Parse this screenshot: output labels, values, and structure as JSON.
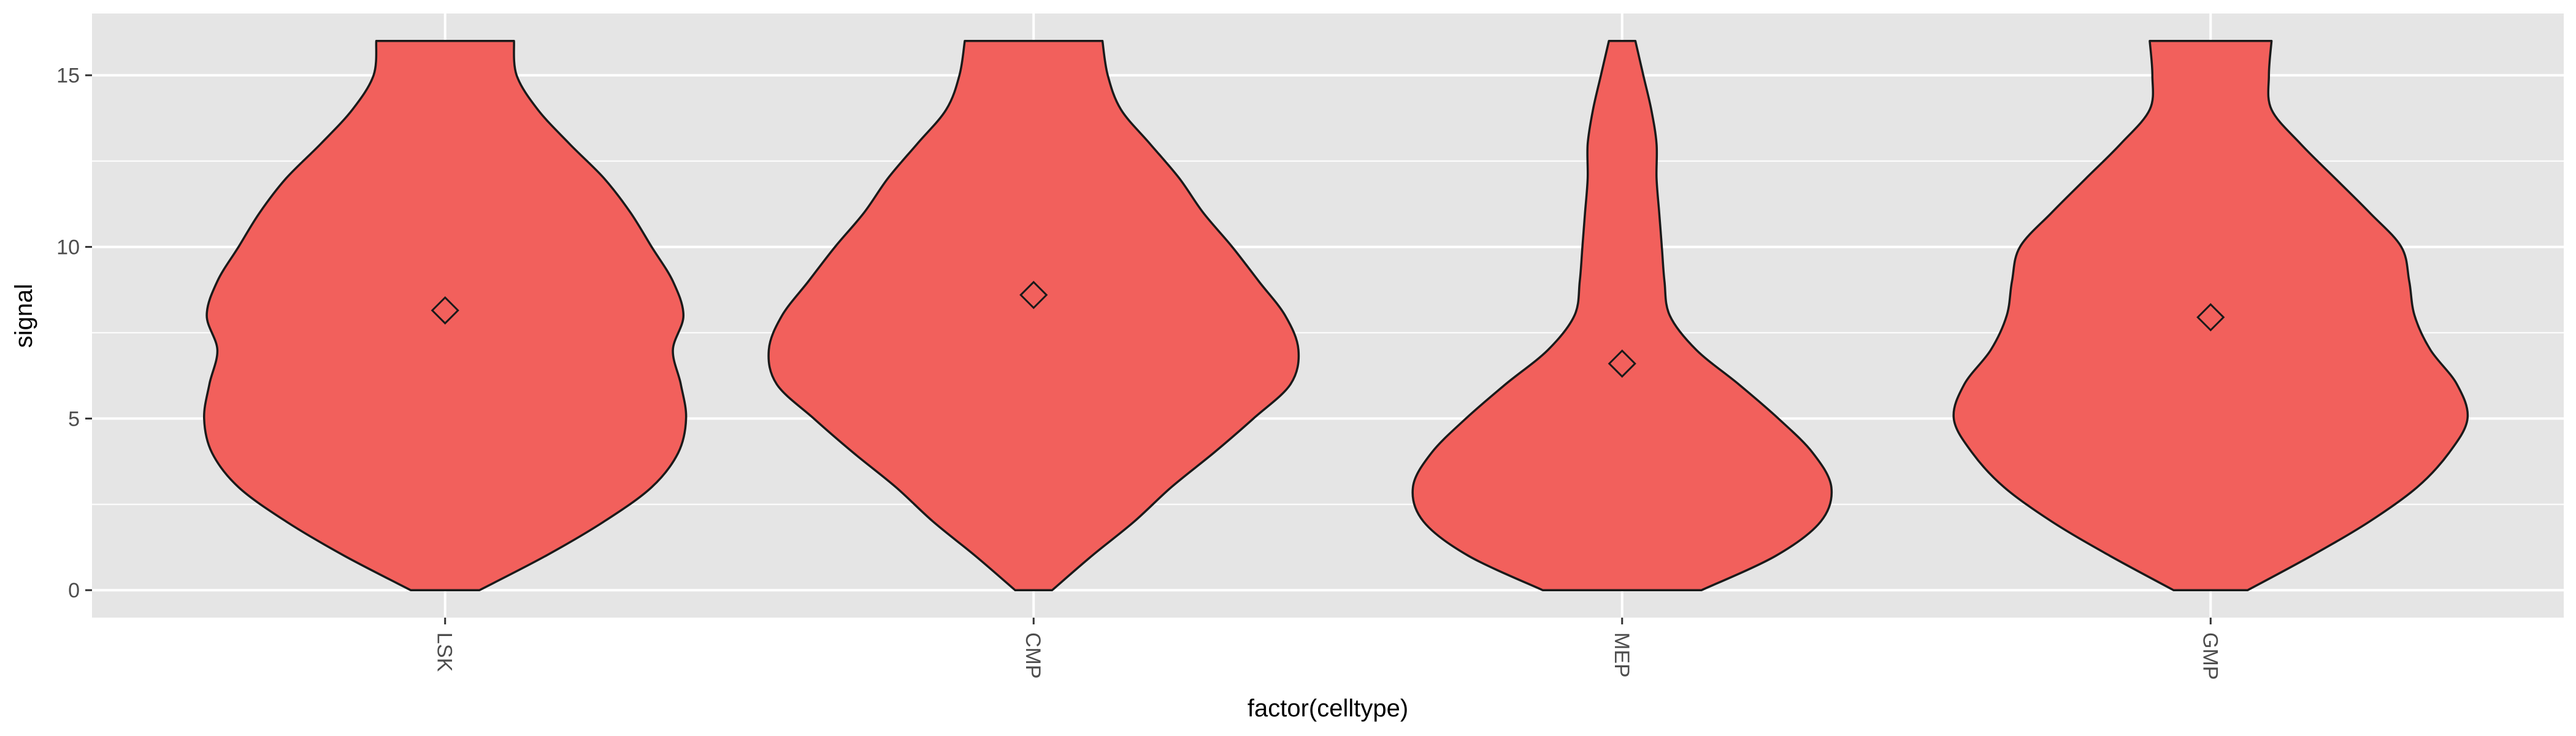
{
  "chart_data": {
    "type": "violin",
    "xlabel": "factor(celltype)",
    "ylabel": "signal",
    "ylim": [
      -0.8,
      16.8
    ],
    "yticks": [
      0,
      5,
      10,
      15
    ],
    "grid": true,
    "colors": {
      "panel": "#e5e5e5",
      "grid": "#ffffff",
      "fill": "#f2605c",
      "outline": "#1a1a1a",
      "tick_text": "#4d4d4d"
    },
    "categories": [
      "LSK",
      "CMP",
      "MEP",
      "GMP"
    ],
    "series": [
      {
        "category": "LSK",
        "mean": 8.15,
        "density_profile": [
          {
            "y": 0.0,
            "width": 0.13
          },
          {
            "y": 1.0,
            "width": 0.38
          },
          {
            "y": 2.0,
            "width": 0.6
          },
          {
            "y": 3.0,
            "width": 0.78
          },
          {
            "y": 4.0,
            "width": 0.88
          },
          {
            "y": 5.0,
            "width": 0.91
          },
          {
            "y": 6.0,
            "width": 0.89
          },
          {
            "y": 7.0,
            "width": 0.86
          },
          {
            "y": 8.0,
            "width": 0.9
          },
          {
            "y": 9.0,
            "width": 0.86
          },
          {
            "y": 10.0,
            "width": 0.78
          },
          {
            "y": 11.0,
            "width": 0.7
          },
          {
            "y": 12.0,
            "width": 0.6
          },
          {
            "y": 13.0,
            "width": 0.47
          },
          {
            "y": 14.0,
            "width": 0.35
          },
          {
            "y": 15.0,
            "width": 0.27
          },
          {
            "y": 16.0,
            "width": 0.26
          }
        ]
      },
      {
        "category": "CMP",
        "mean": 8.6,
        "density_profile": [
          {
            "y": 0.0,
            "width": 0.07
          },
          {
            "y": 1.0,
            "width": 0.22
          },
          {
            "y": 2.0,
            "width": 0.38
          },
          {
            "y": 3.0,
            "width": 0.52
          },
          {
            "y": 4.0,
            "width": 0.68
          },
          {
            "y": 5.0,
            "width": 0.83
          },
          {
            "y": 6.0,
            "width": 0.97
          },
          {
            "y": 7.0,
            "width": 1.0
          },
          {
            "y": 8.0,
            "width": 0.95
          },
          {
            "y": 9.0,
            "width": 0.85
          },
          {
            "y": 10.0,
            "width": 0.75
          },
          {
            "y": 11.0,
            "width": 0.64
          },
          {
            "y": 12.0,
            "width": 0.55
          },
          {
            "y": 13.0,
            "width": 0.44
          },
          {
            "y": 14.0,
            "width": 0.33
          },
          {
            "y": 15.0,
            "width": 0.28
          },
          {
            "y": 16.0,
            "width": 0.26
          }
        ]
      },
      {
        "category": "MEP",
        "mean": 6.6,
        "density_profile": [
          {
            "y": 0.0,
            "width": 0.3
          },
          {
            "y": 1.0,
            "width": 0.58
          },
          {
            "y": 2.0,
            "width": 0.75
          },
          {
            "y": 3.0,
            "width": 0.79
          },
          {
            "y": 4.0,
            "width": 0.72
          },
          {
            "y": 5.0,
            "width": 0.59
          },
          {
            "y": 6.0,
            "width": 0.44
          },
          {
            "y": 7.0,
            "width": 0.28
          },
          {
            "y": 8.0,
            "width": 0.18
          },
          {
            "y": 9.0,
            "width": 0.16
          },
          {
            "y": 10.0,
            "width": 0.15
          },
          {
            "y": 11.0,
            "width": 0.14
          },
          {
            "y": 12.0,
            "width": 0.13
          },
          {
            "y": 13.0,
            "width": 0.13
          },
          {
            "y": 14.0,
            "width": 0.11
          },
          {
            "y": 15.0,
            "width": 0.08
          },
          {
            "y": 16.0,
            "width": 0.05
          }
        ]
      },
      {
        "category": "GMP",
        "mean": 7.95,
        "density_profile": [
          {
            "y": 0.0,
            "width": 0.14
          },
          {
            "y": 1.0,
            "width": 0.38
          },
          {
            "y": 2.0,
            "width": 0.6
          },
          {
            "y": 3.0,
            "width": 0.78
          },
          {
            "y": 4.0,
            "width": 0.9
          },
          {
            "y": 5.0,
            "width": 0.97
          },
          {
            "y": 6.0,
            "width": 0.93
          },
          {
            "y": 7.0,
            "width": 0.83
          },
          {
            "y": 8.0,
            "width": 0.77
          },
          {
            "y": 9.0,
            "width": 0.75
          },
          {
            "y": 10.0,
            "width": 0.72
          },
          {
            "y": 11.0,
            "width": 0.6
          },
          {
            "y": 12.0,
            "width": 0.47
          },
          {
            "y": 13.0,
            "width": 0.34
          },
          {
            "y": 14.0,
            "width": 0.23
          },
          {
            "y": 15.0,
            "width": 0.22
          },
          {
            "y": 16.0,
            "width": 0.23
          }
        ]
      }
    ]
  }
}
